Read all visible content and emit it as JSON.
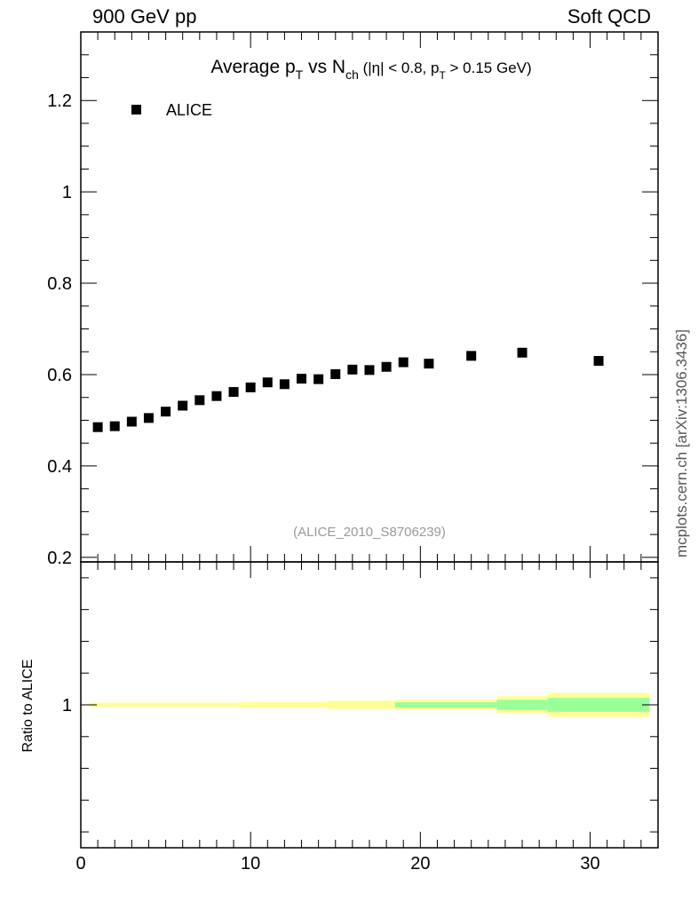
{
  "header": {
    "left": "900 GeV pp",
    "right": "Soft QCD"
  },
  "side_label": "mcplots.cern.ch [arXiv:1306.3436]",
  "chart_data": [
    {
      "type": "scatter",
      "title": {
        "main": "Average p",
        "sub1": "T",
        "mid": " vs N",
        "sub2": "ch",
        "rest_a": " (|η| < 0.8, p",
        "sub3": "T",
        "rest_b": " > 0.15 GeV)"
      },
      "watermark": "(ALICE_2010_S8706239)",
      "legend": {
        "position": "top-left",
        "label": "ALICE",
        "marker_color": "#000000"
      },
      "xlim": [
        0,
        34
      ],
      "ylim": [
        0.19,
        1.35
      ],
      "yticks": [
        0.2,
        0.4,
        0.6,
        0.8,
        1.0,
        1.2
      ],
      "ytick_labels": [
        "0.2",
        "0.4",
        "0.6",
        "0.8",
        "1",
        "1.2"
      ],
      "series": [
        {
          "name": "ALICE",
          "x": [
            1,
            2,
            3,
            4,
            5,
            6,
            7,
            8,
            9,
            10,
            11,
            12,
            13,
            14,
            15,
            16,
            17,
            18,
            19,
            20.5,
            23,
            26,
            30.5
          ],
          "y": [
            0.485,
            0.487,
            0.497,
            0.505,
            0.519,
            0.532,
            0.544,
            0.553,
            0.562,
            0.572,
            0.583,
            0.579,
            0.591,
            0.59,
            0.601,
            0.611,
            0.61,
            0.617,
            0.627,
            0.624,
            0.641,
            0.648,
            0.63
          ]
        }
      ]
    },
    {
      "type": "area",
      "ylabel": "Ratio to ALICE",
      "xlim": [
        0,
        34
      ],
      "ylim": [
        0.55,
        1.45
      ],
      "yticks": [
        1.0
      ],
      "ytick_labels": [
        "1"
      ],
      "xticks": [
        0,
        10,
        20,
        30
      ],
      "xtick_labels": [
        "0",
        "10",
        "20",
        "30"
      ],
      "colors": {
        "total_uncertainty": "#ffff99",
        "stat_uncertainty": "#99ff99"
      },
      "bands": [
        {
          "x0": 0.5,
          "x1": 9.5,
          "total": 0.007,
          "stat": 0.0
        },
        {
          "x0": 9.5,
          "x1": 14.5,
          "total": 0.009,
          "stat": 0.0
        },
        {
          "x0": 14.5,
          "x1": 18.5,
          "total": 0.013,
          "stat": 0.0
        },
        {
          "x0": 18.5,
          "x1": 24.5,
          "total": 0.016,
          "stat": 0.008
        },
        {
          "x0": 24.5,
          "x1": 27.5,
          "total": 0.027,
          "stat": 0.016
        },
        {
          "x0": 27.5,
          "x1": 33.5,
          "total": 0.038,
          "stat": 0.022
        }
      ]
    }
  ]
}
